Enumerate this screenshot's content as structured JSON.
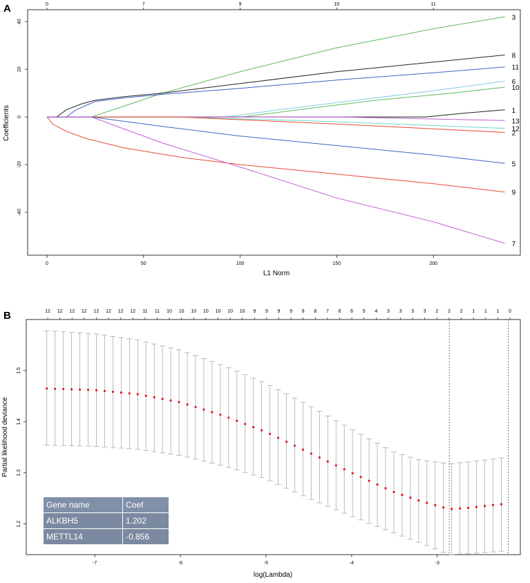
{
  "panels": {
    "a_label": "A",
    "b_label": "B"
  },
  "chart_data": [
    {
      "type": "line",
      "title": "",
      "xlabel": "L1 Norm",
      "ylabel": "Coefficients",
      "xlim": [
        -10,
        245
      ],
      "ylim": [
        -58,
        45
      ],
      "x_ticks": [
        0,
        50,
        100,
        150,
        200
      ],
      "y_ticks": [
        -40,
        -20,
        0,
        20,
        40
      ],
      "top_ticks": [
        {
          "x": 0,
          "label": "0"
        },
        {
          "x": 50,
          "label": "7"
        },
        {
          "x": 100,
          "label": "9"
        },
        {
          "x": 150,
          "label": "10"
        },
        {
          "x": 200,
          "label": "11"
        }
      ],
      "series": [
        {
          "name": "3",
          "color": "#5cb85c",
          "points": [
            [
              23,
              0
            ],
            [
              60,
              10
            ],
            [
              100,
              19
            ],
            [
              150,
              29
            ],
            [
              200,
              37
            ],
            [
              237,
              42
            ]
          ]
        },
        {
          "name": "8",
          "color": "#222222",
          "points": [
            [
              5,
              0
            ],
            [
              10,
              3
            ],
            [
              18,
              5.5
            ],
            [
              25,
              7
            ],
            [
              40,
              8.5
            ],
            [
              60,
              10
            ],
            [
              100,
              14
            ],
            [
              150,
              19
            ],
            [
              200,
              23
            ],
            [
              237,
              26
            ]
          ]
        },
        {
          "name": "11",
          "color": "#3a63c8",
          "points": [
            [
              10,
              0
            ],
            [
              15,
              3
            ],
            [
              25,
              6.5
            ],
            [
              40,
              8
            ],
            [
              60,
              9.5
            ],
            [
              100,
              12
            ],
            [
              150,
              15.5
            ],
            [
              200,
              18.5
            ],
            [
              237,
              21
            ]
          ]
        },
        {
          "name": "6",
          "color": "#7ec8e3",
          "points": [
            [
              93,
              0
            ],
            [
              120,
              3
            ],
            [
              160,
              7
            ],
            [
              200,
              11
            ],
            [
              237,
              15
            ]
          ]
        },
        {
          "name": "10",
          "color": "#5cb85c",
          "points": [
            [
              101,
              0
            ],
            [
              130,
              3
            ],
            [
              170,
              7
            ],
            [
              210,
              10
            ],
            [
              237,
              12.5
            ]
          ]
        },
        {
          "name": "1",
          "color": "#222222",
          "points": [
            [
              196,
              0
            ],
            [
              215,
              1.5
            ],
            [
              237,
              3
            ]
          ]
        },
        {
          "name": "13",
          "color": "#c05fd0",
          "points": [
            [
              0,
              0
            ],
            [
              150,
              0
            ],
            [
              237,
              -1.5
            ]
          ]
        },
        {
          "name": "12",
          "color": "#6fd6c8",
          "points": [
            [
              68,
              0
            ],
            [
              150,
              -2
            ],
            [
              237,
              -4.8
            ]
          ]
        },
        {
          "name": "2",
          "color": "#e84a2f",
          "points": [
            [
              68,
              0
            ],
            [
              150,
              -3
            ],
            [
              237,
              -6.5
            ]
          ]
        },
        {
          "name": "5",
          "color": "#3a63c8",
          "points": [
            [
              23,
              0
            ],
            [
              60,
              -4
            ],
            [
              100,
              -8
            ],
            [
              150,
              -12
            ],
            [
              200,
              -16
            ],
            [
              237,
              -19.5
            ]
          ]
        },
        {
          "name": "9",
          "color": "#e84a2f",
          "points": [
            [
              0,
              0
            ],
            [
              3,
              -3
            ],
            [
              10,
              -6
            ],
            [
              20,
              -9
            ],
            [
              40,
              -13
            ],
            [
              70,
              -17
            ],
            [
              100,
              -20
            ],
            [
              150,
              -24
            ],
            [
              200,
              -28
            ],
            [
              237,
              -31.5
            ]
          ]
        },
        {
          "name": "7",
          "color": "#c05fd0",
          "points": [
            [
              23,
              0
            ],
            [
              60,
              -11
            ],
            [
              100,
              -21
            ],
            [
              150,
              -34
            ],
            [
              200,
              -44
            ],
            [
              237,
              -53
            ]
          ]
        }
      ]
    },
    {
      "type": "scatter",
      "title": "",
      "xlabel": "log(Lambda)",
      "ylabel": "Partial likelihood deviance",
      "xlim": [
        -7.8,
        -2.03
      ],
      "ylim": [
        1.14,
        1.6
      ],
      "x_ticks": [
        -7,
        -6,
        -5,
        -4,
        -3
      ],
      "y_ticks": [
        1.2,
        1.3,
        1.4,
        1.5
      ],
      "top_counts": [
        "12",
        "12",
        "12",
        "12",
        "12",
        "12",
        "12",
        "12",
        "11",
        "11",
        "10",
        "10",
        "10",
        "10",
        "10",
        "10",
        "10",
        "9",
        "9",
        "9",
        "9",
        "8",
        "8",
        "7",
        "6",
        "6",
        "5",
        "4",
        "3",
        "3",
        "3",
        "3",
        "2",
        "2",
        "2",
        "1",
        "1",
        "1",
        "0"
      ],
      "lambda_min_line": -2.86,
      "lambda_1se_line": -2.17,
      "x_start": -7.56,
      "x_step": 0.0965,
      "points": 56,
      "mean_curve": [
        [
          -7.56,
          1.465
        ],
        [
          -7.0,
          1.462
        ],
        [
          -6.5,
          1.454
        ],
        [
          -6.0,
          1.438
        ],
        [
          -5.5,
          1.412
        ],
        [
          -5.0,
          1.38
        ],
        [
          -4.5,
          1.34
        ],
        [
          -4.0,
          1.3
        ],
        [
          -3.5,
          1.262
        ],
        [
          -3.2,
          1.245
        ],
        [
          -2.86,
          1.229
        ],
        [
          -2.6,
          1.232
        ],
        [
          -2.3,
          1.238
        ],
        [
          -2.22,
          1.239
        ]
      ],
      "upper_curve": [
        [
          -7.56,
          1.578
        ],
        [
          -7.0,
          1.572
        ],
        [
          -6.5,
          1.56
        ],
        [
          -6.0,
          1.54
        ],
        [
          -5.5,
          1.51
        ],
        [
          -5.0,
          1.475
        ],
        [
          -4.5,
          1.432
        ],
        [
          -4.0,
          1.385
        ],
        [
          -3.5,
          1.34
        ],
        [
          -3.2,
          1.325
        ],
        [
          -2.86,
          1.318
        ],
        [
          -2.6,
          1.322
        ],
        [
          -2.3,
          1.328
        ],
        [
          -2.22,
          1.33
        ]
      ],
      "lower_curve": [
        [
          -7.56,
          1.354
        ],
        [
          -7.0,
          1.352
        ],
        [
          -6.5,
          1.346
        ],
        [
          -6.0,
          1.334
        ],
        [
          -5.5,
          1.314
        ],
        [
          -5.0,
          1.288
        ],
        [
          -4.5,
          1.25
        ],
        [
          -4.0,
          1.215
        ],
        [
          -3.5,
          1.182
        ],
        [
          -3.2,
          1.163
        ],
        [
          -2.86,
          1.14
        ],
        [
          -2.6,
          1.142
        ],
        [
          -2.3,
          1.146
        ],
        [
          -2.22,
          1.147
        ]
      ],
      "colors": {
        "point": "#e8141c",
        "bar": "#aaaaaa",
        "vline": "#555555"
      }
    }
  ],
  "table": {
    "headers": [
      "Gene name",
      "Coef"
    ],
    "rows": [
      [
        "ALKBH5",
        "1.202"
      ],
      [
        "METTL14",
        "-0.856"
      ]
    ]
  }
}
